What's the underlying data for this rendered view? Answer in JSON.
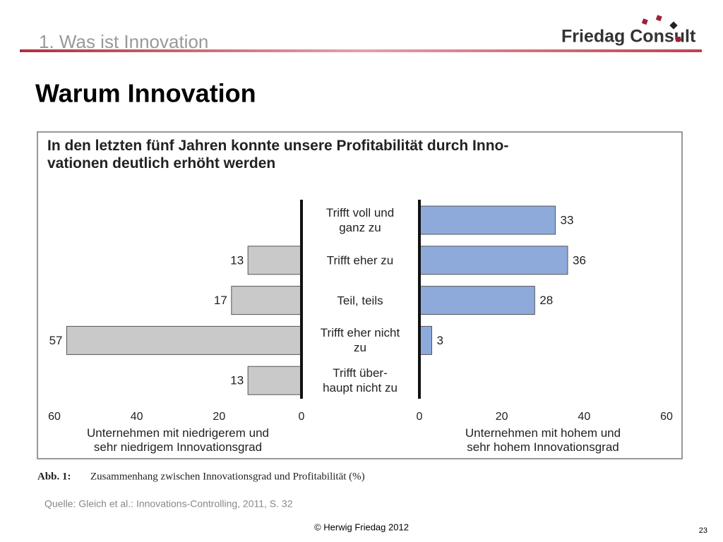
{
  "header": {
    "section": "1. Was ist Innovation",
    "logo": "Friedag Consult"
  },
  "title": "Warum Innovation",
  "chart_data": {
    "type": "bar",
    "title": "In den letzten fünf Jahren konnte unsere Profitabilität durch Inno-\nvationen deutlich erhöht werden",
    "categories": [
      "Trifft voll und\nganz zu",
      "Trifft eher zu",
      "Teil, teils",
      "Trifft eher nicht\nzu",
      "Trifft über-\nhaupt nicht zu"
    ],
    "series": [
      {
        "name": "Unternehmen mit niedrigerem und\nsehr niedrigem Innovationsgrad",
        "color": "#c9c9c9",
        "values": [
          null,
          13,
          17,
          57,
          13
        ]
      },
      {
        "name": "Unternehmen mit hohem und\nsehr hohem Innovationsgrad",
        "color": "#8eaadb",
        "values": [
          33,
          36,
          28,
          3,
          null
        ]
      }
    ],
    "xlim": [
      0,
      60
    ],
    "xticks": [
      0,
      20,
      40,
      60
    ],
    "caption_label": "Abb. 1:",
    "caption": "Zusammenhang zwischen Innovationsgrad und Profitabilität (%)"
  },
  "source": "Quelle: Gleich et al.:  Innovations-Controlling,  2011, S. 32",
  "footer": "©  Herwig Friedag  2012",
  "page_number": "23"
}
